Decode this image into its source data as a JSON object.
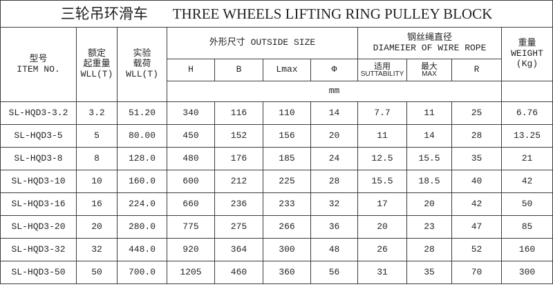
{
  "title": {
    "cn": "三轮吊环滑车",
    "en": "THREE WHEELS LIFTING RING PULLEY BLOCK"
  },
  "headers": {
    "item": {
      "cn": "型号",
      "en": "ITEM NO."
    },
    "wll": {
      "cn1": "额定",
      "cn2": "起重量",
      "en": "WLL(T)"
    },
    "test": {
      "cn1": "实验",
      "cn2": "载荷",
      "en": "WLL(T)"
    },
    "outside": "外形尺寸 OUTSIDE SIZE",
    "rope": {
      "cn": "钢丝绳直径",
      "en": "DIAMEIER OF WIRE ROPE"
    },
    "weight": {
      "cn": "重量",
      "en": "WEIGHT",
      "unit": "(Kg)"
    },
    "h": "H",
    "b": "B",
    "lmax": "Lmax",
    "phi": "Φ",
    "suit": {
      "cn": "适用",
      "en": "SUTTABILITY"
    },
    "max": {
      "cn": "最大",
      "en": "MAX"
    },
    "r": "R",
    "unit": "mm"
  },
  "rows": [
    [
      "SL-HQD3-3.2",
      "3.2",
      "51.20",
      "340",
      "116",
      "110",
      "14",
      "7.7",
      "11",
      "25",
      "6.76"
    ],
    [
      "SL-HQD3-5",
      "5",
      "80.00",
      "450",
      "152",
      "156",
      "20",
      "11",
      "14",
      "28",
      "13.25"
    ],
    [
      "SL-HQD3-8",
      "8",
      "128.0",
      "480",
      "176",
      "185",
      "24",
      "12.5",
      "15.5",
      "35",
      "21"
    ],
    [
      "SL-HQD3-10",
      "10",
      "160.0",
      "600",
      "212",
      "225",
      "28",
      "15.5",
      "18.5",
      "40",
      "42"
    ],
    [
      "SL-HQD3-16",
      "16",
      "224.0",
      "660",
      "236",
      "233",
      "32",
      "17",
      "20",
      "42",
      "50"
    ],
    [
      "SL-HQD3-20",
      "20",
      "280.0",
      "775",
      "275",
      "266",
      "36",
      "20",
      "23",
      "47",
      "85"
    ],
    [
      "SL-HQD3-32",
      "32",
      "448.0",
      "920",
      "364",
      "300",
      "48",
      "26",
      "28",
      "52",
      "160"
    ],
    [
      "SL-HQD3-50",
      "50",
      "700.0",
      "1205",
      "460",
      "360",
      "56",
      "31",
      "35",
      "70",
      "300"
    ]
  ]
}
